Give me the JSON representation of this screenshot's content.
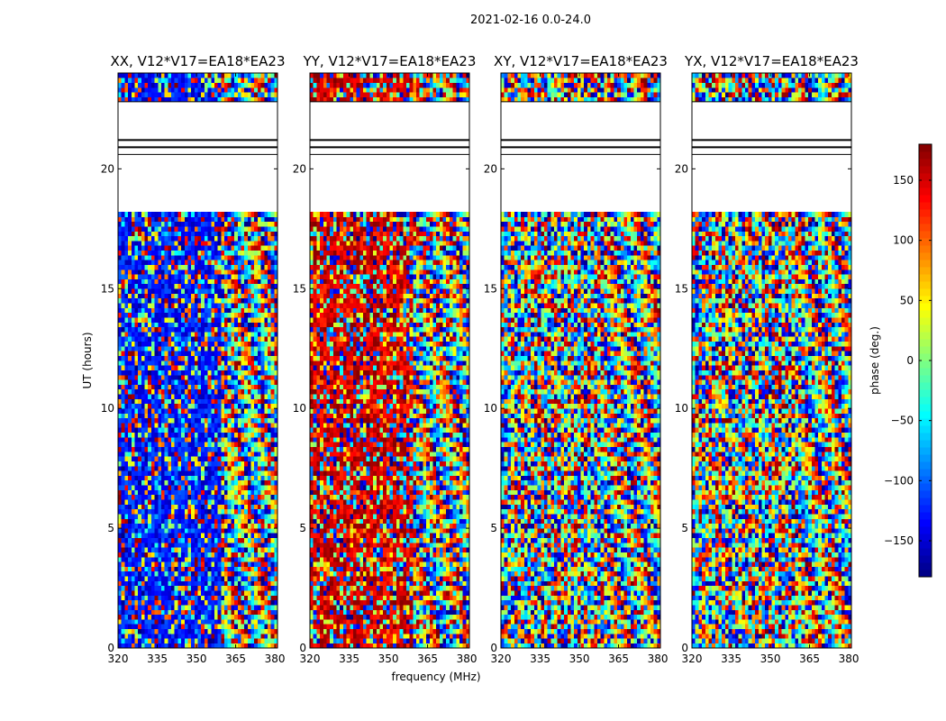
{
  "figure": {
    "suptitle": "2021-02-16 0.0-24.0"
  },
  "chart_data": {
    "type": "heatmap",
    "xlabel": "frequency (MHz)",
    "ylabel": "UT (hours)",
    "xlim": [
      320,
      381
    ],
    "ylim": [
      0,
      24
    ],
    "xticks": [
      320,
      335,
      350,
      365,
      380
    ],
    "yticks": [
      0,
      5,
      10,
      15,
      20
    ],
    "panels": [
      {
        "title": "XX, V12*V17=EA18*EA23",
        "polarization": "XX",
        "low_freq_bias": -130
      },
      {
        "title": "YY, V12*V17=EA18*EA23",
        "polarization": "YY",
        "low_freq_bias": 150
      },
      {
        "title": "XY, V12*V17=EA18*EA23",
        "polarization": "XY",
        "low_freq_bias": null
      },
      {
        "title": "YX, V12*V17=EA18*EA23",
        "polarization": "YX",
        "low_freq_bias": null
      }
    ],
    "flagged_time_ranges_hours": [
      [
        20.6,
        22.8
      ]
    ],
    "colorbar": {
      "label": "phase (deg.)",
      "range": [
        -180,
        180
      ],
      "ticks": [
        -150,
        -100,
        -50,
        0,
        50,
        100,
        150
      ],
      "tick_labels": [
        "−150",
        "−100",
        "−50",
        "0",
        "50",
        "100",
        "150"
      ],
      "colormap": "jet"
    }
  }
}
